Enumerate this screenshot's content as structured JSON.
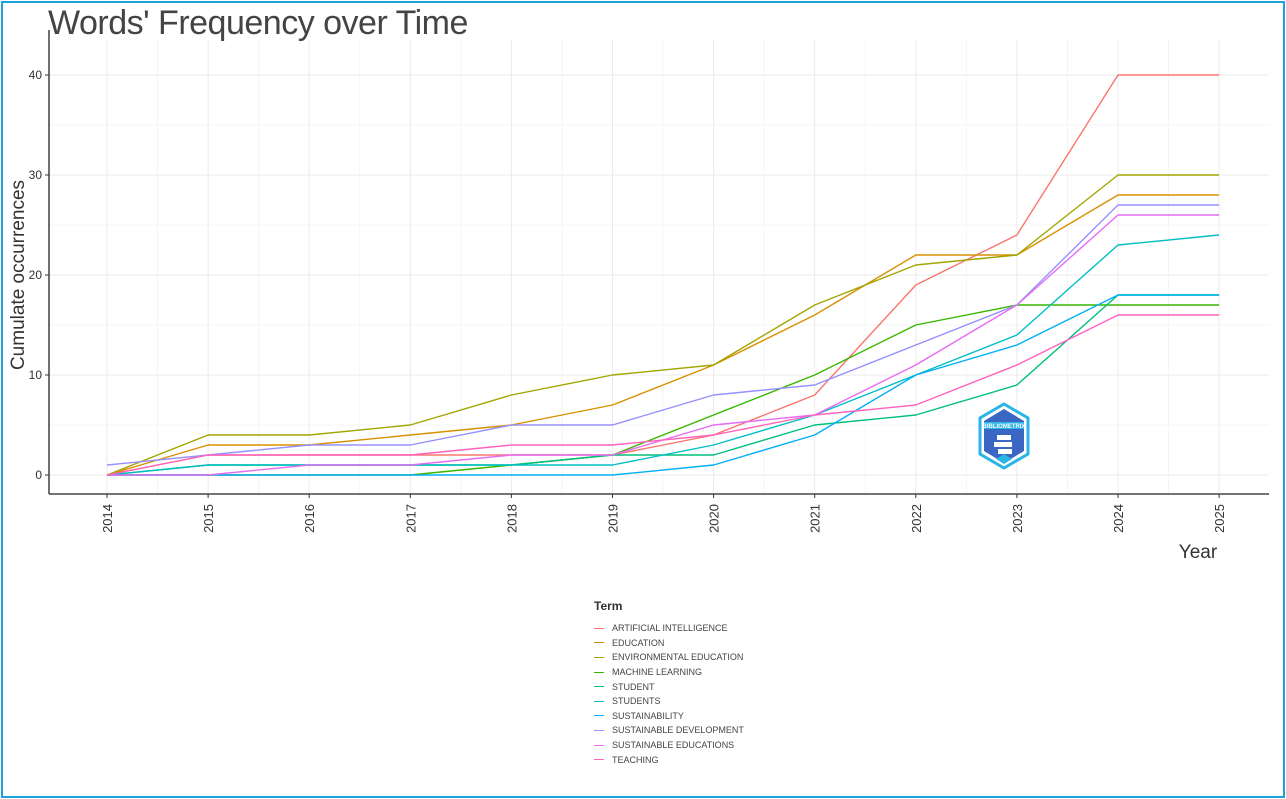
{
  "chart_data": {
    "type": "line",
    "title": "Words' Frequency over Time",
    "xlabel": "Year",
    "ylabel": "Cumulate occurrences",
    "x": [
      2014,
      2015,
      2016,
      2017,
      2018,
      2019,
      2020,
      2021,
      2022,
      2023,
      2024,
      2025
    ],
    "ylim": [
      0,
      40
    ],
    "yticks": [
      0,
      10,
      20,
      30,
      40
    ],
    "grid": true,
    "legend_title": "Term",
    "legend_position": "bottom",
    "series": [
      {
        "name": "ARTIFICIAL INTELLIGENCE",
        "color": "#F8766D",
        "values": [
          0,
          2,
          2,
          2,
          2,
          2,
          4,
          8,
          19,
          24,
          40,
          40
        ]
      },
      {
        "name": "EDUCATION",
        "color": "#D89000",
        "values": [
          0,
          3,
          3,
          4,
          5,
          7,
          11,
          16,
          22,
          22,
          28,
          28
        ]
      },
      {
        "name": "ENVIRONMENTAL EDUCATION",
        "color": "#A3A500",
        "values": [
          0,
          4,
          4,
          5,
          8,
          10,
          11,
          17,
          21,
          22,
          30,
          30
        ]
      },
      {
        "name": "MACHINE LEARNING",
        "color": "#39B600",
        "values": [
          0,
          0,
          0,
          0,
          1,
          2,
          6,
          10,
          15,
          17,
          17,
          17
        ]
      },
      {
        "name": "STUDENT",
        "color": "#00BF7D",
        "values": [
          0,
          1,
          1,
          1,
          1,
          2,
          2,
          5,
          6,
          9,
          18,
          18
        ]
      },
      {
        "name": "STUDENTS",
        "color": "#00BFC4",
        "values": [
          0,
          1,
          1,
          1,
          1,
          1,
          3,
          6,
          10,
          14,
          23,
          24
        ]
      },
      {
        "name": "SUSTAINABILITY",
        "color": "#00B0F6",
        "values": [
          0,
          0,
          0,
          0,
          0,
          0,
          1,
          4,
          10,
          13,
          18,
          18
        ]
      },
      {
        "name": "SUSTAINABLE DEVELOPMENT",
        "color": "#9590FF",
        "values": [
          1,
          2,
          3,
          3,
          5,
          5,
          8,
          9,
          13,
          17,
          27,
          27
        ]
      },
      {
        "name": "SUSTAINABLE EDUCATIONS",
        "color": "#E76BF3",
        "values": [
          0,
          0,
          1,
          1,
          2,
          2,
          5,
          6,
          11,
          17,
          26,
          26
        ]
      },
      {
        "name": "TEACHING",
        "color": "#FF62BC",
        "values": [
          0,
          2,
          2,
          2,
          3,
          3,
          4,
          6,
          7,
          11,
          16,
          16
        ]
      }
    ]
  }
}
